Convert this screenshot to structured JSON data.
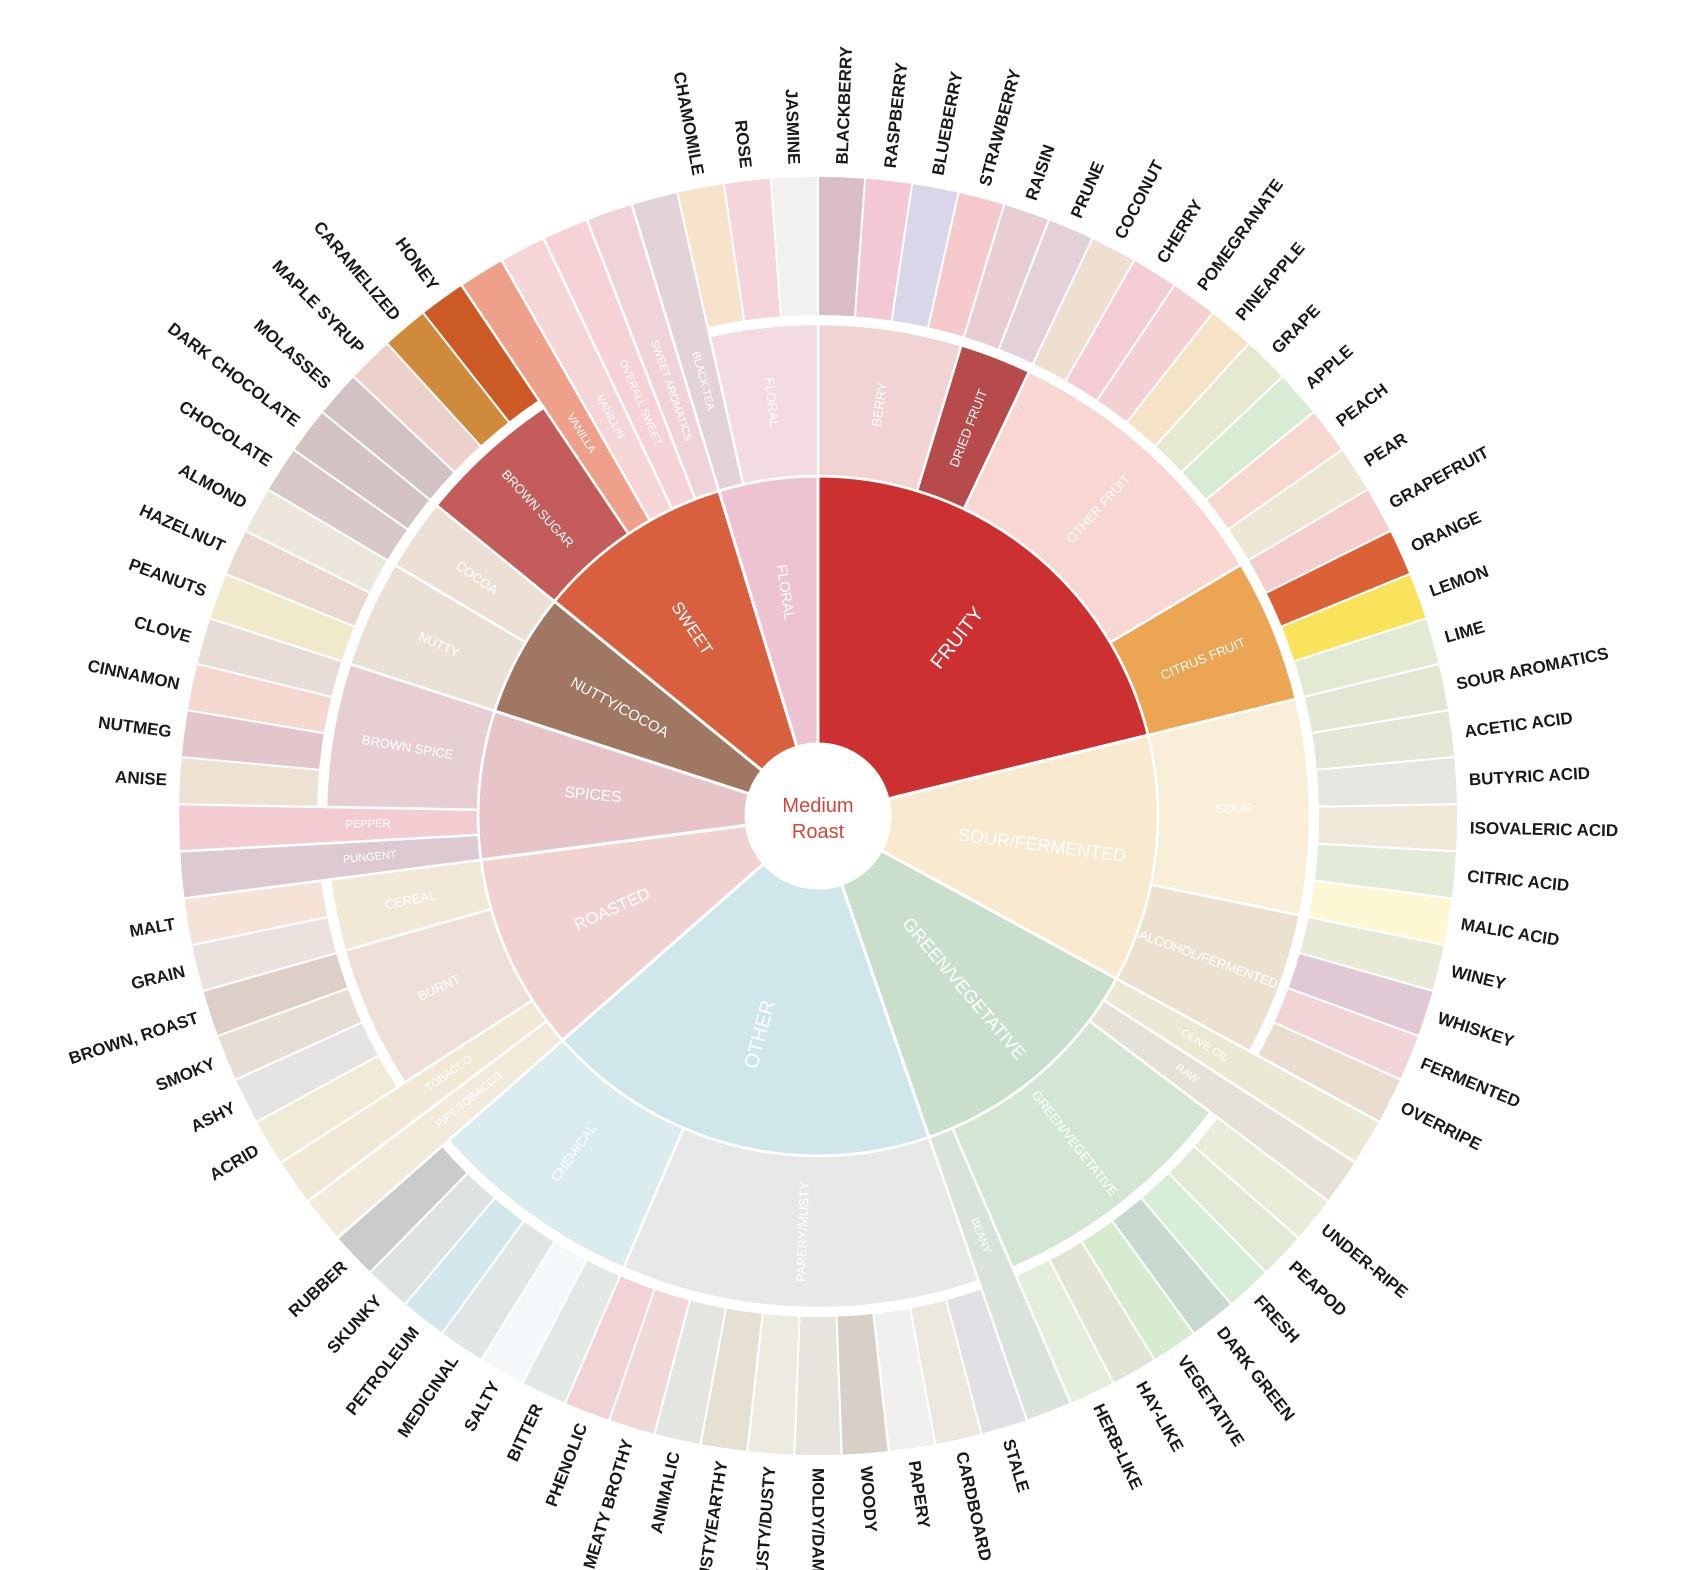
{
  "chart_data": {
    "type": "sunburst",
    "center": {
      "line1": "Medium",
      "line2": "Roast",
      "color": "#d2473a"
    },
    "categories": [
      {
        "name": "FRUITY",
        "color": "#cc3030",
        "subcategories": [
          {
            "name": "BERRY",
            "color": "#f2d3d3",
            "flavors": [
              {
                "name": "BLACKBERRY",
                "color": "#d9bec5"
              },
              {
                "name": "RASPBERRY",
                "color": "#f3c7d3"
              },
              {
                "name": "BLUEBERRY",
                "color": "#d8d6e8"
              },
              {
                "name": "STRAWBERRY",
                "color": "#f5c8cc"
              }
            ]
          },
          {
            "name": "DRIED FRUIT",
            "color": "#b74a4a",
            "flavors": [
              {
                "name": "RAISIN",
                "color": "#e7cdd2"
              },
              {
                "name": "PRUNE",
                "color": "#e4d0d8"
              }
            ]
          },
          {
            "name": "OTHER FRUIT",
            "color": "#f8d7d3",
            "flavors": [
              {
                "name": "COCONUT",
                "color": "#efdfd1"
              },
              {
                "name": "CHERRY",
                "color": "#f4ccd3"
              },
              {
                "name": "POMEGRANATE",
                "color": "#f4d0d2"
              },
              {
                "name": "PINEAPPLE",
                "color": "#f6e3c5"
              },
              {
                "name": "GRAPE",
                "color": "#e6e8cf"
              },
              {
                "name": "APPLE",
                "color": "#d8ecd4"
              },
              {
                "name": "PEACH",
                "color": "#f6d8d1"
              },
              {
                "name": "PEAR",
                "color": "#ede6d3"
              }
            ]
          },
          {
            "name": "CITRUS FRUIT",
            "color": "#eba553",
            "flavors": [
              {
                "name": "GRAPEFRUIT",
                "color": "#f4cdcd"
              },
              {
                "name": "ORANGE",
                "color": "#db6236"
              },
              {
                "name": "LEMON",
                "color": "#f8e35b"
              },
              {
                "name": "LIME",
                "color": "#e2ead3"
              }
            ]
          }
        ]
      },
      {
        "name": "SOUR/FERMENTED",
        "color": "#f8e9cf",
        "subcategories": [
          {
            "name": "SOUR",
            "color": "#f9eed8",
            "flavors": [
              {
                "name": "SOUR AROMATICS",
                "color": "#e2e7d3"
              },
              {
                "name": "ACETIC ACID",
                "color": "#e5e6d5"
              },
              {
                "name": "BUTYRIC ACID",
                "color": "#e6e6e0"
              },
              {
                "name": "ISOVALERIC ACID",
                "color": "#f0e9da"
              },
              {
                "name": "CITRIC ACID",
                "color": "#e1ebd8"
              },
              {
                "name": "MALIC ACID",
                "color": "#fdf7d3"
              }
            ]
          },
          {
            "name": "ALCOHOL/FERMENTED",
            "color": "#ece1cf",
            "flavors": [
              {
                "name": "WINEY",
                "color": "#e8e9d6"
              },
              {
                "name": "WHISKEY",
                "color": "#e1c8d5"
              },
              {
                "name": "FERMENTED",
                "color": "#f0d4d6"
              },
              {
                "name": "OVERRIPE",
                "color": "#ebdcd0"
              }
            ]
          }
        ]
      },
      {
        "name": "GREEN/VEGETATIVE",
        "color": "#c9dfcb",
        "subcategories": [
          {
            "name": "OLIVE OIL",
            "color": "#ebe8d3",
            "flavors": []
          },
          {
            "name": "RAW",
            "color": "#e6e1d6",
            "flavors": []
          },
          {
            "name": "GREEN/VEGETATIVE",
            "color": "#d3e6d3",
            "flavors": [
              {
                "name": "UNDER-RIPE",
                "color": "#e9ecd9"
              },
              {
                "name": "PEAPOD",
                "color": "#e2ead5"
              },
              {
                "name": "FRESH",
                "color": "#d6eed8"
              },
              {
                "name": "DARK GREEN",
                "color": "#c8d9cf"
              },
              {
                "name": "VEGETATIVE",
                "color": "#d7eccf"
              },
              {
                "name": "HAY-LIKE",
                "color": "#e3e5d4"
              },
              {
                "name": "HERB-LIKE",
                "color": "#e4eedd"
              }
            ]
          },
          {
            "name": "BEANY",
            "color": "#d8e3da",
            "flavors": []
          }
        ]
      },
      {
        "name": "OTHER",
        "color": "#cfe6ea",
        "subcategories": [
          {
            "name": "PAPERY/MUSTY",
            "color": "#e6e9e8",
            "flavors": [
              {
                "name": "STALE",
                "color": "#e1e1e5"
              },
              {
                "name": "CARDBOARD",
                "color": "#ede8de"
              },
              {
                "name": "PAPERY",
                "color": "#f0f0ef"
              },
              {
                "name": "WOODY",
                "color": "#d8d0c6"
              },
              {
                "name": "MOLDY/DAMP",
                "color": "#e6e4dc"
              },
              {
                "name": "MUSTY/DUSTY",
                "color": "#eeebe0"
              },
              {
                "name": "MUSTY/EARTHY",
                "color": "#e6e0d3"
              },
              {
                "name": "ANIMALIC",
                "color": "#e4e4e0"
              },
              {
                "name": "MEATY BROTHY",
                "color": "#efd8d5"
              },
              {
                "name": "PHENOLIC",
                "color": "#f1d2d5"
              }
            ]
          },
          {
            "name": "CHEMICAL",
            "color": "#dbecee",
            "flavors": [
              {
                "name": "BITTER",
                "color": "#e2e8e3"
              },
              {
                "name": "SALTY",
                "color": "#f4f8fa"
              },
              {
                "name": "MEDICINAL",
                "color": "#e0e5e6"
              },
              {
                "name": "PETROLEUM",
                "color": "#d3e8ec"
              },
              {
                "name": "SKUNKY",
                "color": "#dde2e2"
              },
              {
                "name": "RUBBER",
                "color": "#cbcbcb"
              }
            ]
          }
        ]
      },
      {
        "name": "ROASTED",
        "color": "#f0d3d0",
        "subcategories": [
          {
            "name": "PIPE TOBACCO",
            "color": "#f2ebdc",
            "flavors": []
          },
          {
            "name": "TOBACCO",
            "color": "#f1e8d5",
            "flavors": []
          },
          {
            "name": "BURNT",
            "color": "#eee0d8",
            "flavors": [
              {
                "name": "ACRID",
                "color": "#efebd6"
              },
              {
                "name": "ASHY",
                "color": "#e6e4e2"
              },
              {
                "name": "SMOKY",
                "color": "#e6ddd5"
              },
              {
                "name": "BROWN, ROAST",
                "color": "#ddcfc8"
              }
            ]
          },
          {
            "name": "CEREAL",
            "color": "#f1e8d8",
            "flavors": [
              {
                "name": "GRAIN",
                "color": "#ebe2dd"
              },
              {
                "name": "MALT",
                "color": "#f5e3d8"
              }
            ]
          }
        ]
      },
      {
        "name": "SPICES",
        "color": "#e6c4c8",
        "subcategories": [
          {
            "name": "PUNGENT",
            "color": "#dccad0",
            "flavors": []
          },
          {
            "name": "PEPPER",
            "color": "#f3ccd1",
            "flavors": []
          },
          {
            "name": "BROWN SPICE",
            "color": "#e6ced2",
            "flavors": [
              {
                "name": "ANISE",
                "color": "#ede1d3"
              },
              {
                "name": "NUTMEG",
                "color": "#e2c6cb"
              },
              {
                "name": "CINNAMON",
                "color": "#f4d8d0"
              },
              {
                "name": "CLOVE",
                "color": "#e8dcd7"
              }
            ]
          }
        ]
      },
      {
        "name": "NUTTY/COCOA",
        "color": "#a07762",
        "subcategories": [
          {
            "name": "NUTTY",
            "color": "#ebe0d6",
            "flavors": [
              {
                "name": "PEANUTS",
                "color": "#f0eacb"
              },
              {
                "name": "HAZELNUT",
                "color": "#ead8d0"
              },
              {
                "name": "ALMOND",
                "color": "#ede6dd"
              }
            ]
          },
          {
            "name": "COCOA",
            "color": "#ece0d5",
            "flavors": [
              {
                "name": "CHOCOLATE",
                "color": "#d9c8c8"
              },
              {
                "name": "DARK CHOCOLATE",
                "color": "#d3c3c3"
              }
            ]
          }
        ]
      },
      {
        "name": "SWEET",
        "color": "#d8603f",
        "subcategories": [
          {
            "name": "BROWN SUGAR",
            "color": "#c35c5b",
            "flavors": [
              {
                "name": "MOLASSES",
                "color": "#d2c2c4"
              },
              {
                "name": "MAPLE SYRUP",
                "color": "#ecd1cb"
              },
              {
                "name": "CARAMELIZED",
                "color": "#d08a3b"
              },
              {
                "name": "HONEY",
                "color": "#cc5a25"
              }
            ]
          },
          {
            "name": "VANILLA",
            "color": "#eea08b",
            "flavors": []
          },
          {
            "name": "VANILLIN",
            "color": "#f5d5d5",
            "flavors": []
          },
          {
            "name": "OVERALL SWEET",
            "color": "#f6d2d6",
            "flavors": []
          },
          {
            "name": "SWEET AROMATICS",
            "color": "#f0d3d8",
            "flavors": []
          }
        ]
      },
      {
        "name": "FLORAL",
        "color": "#edc2d1",
        "subcategories": [
          {
            "name": "BLACK TEA",
            "color": "#e3d2d6",
            "flavors": []
          },
          {
            "name": "FLORAL",
            "color": "#f4dae1",
            "flavors": [
              {
                "name": "CHAMOMILE",
                "color": "#f7e3cb"
              },
              {
                "name": "ROSE",
                "color": "#f6d5da"
              },
              {
                "name": "JASMINE",
                "color": "#f1f1f1"
              }
            ]
          }
        ]
      }
    ]
  }
}
